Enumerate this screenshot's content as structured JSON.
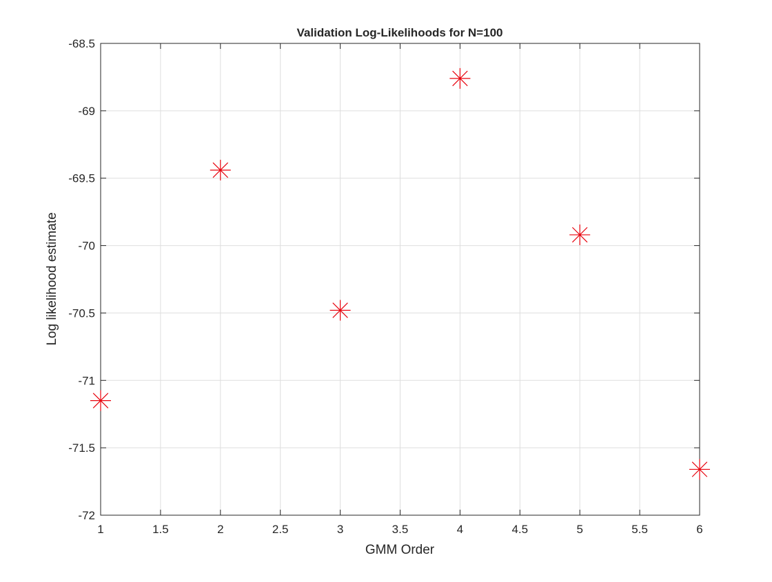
{
  "chart_data": {
    "type": "scatter",
    "title": "Validation Log-Likelihoods for N=100",
    "xlabel": "GMM Order",
    "ylabel": "Log likelihood estimate",
    "xlim": [
      1,
      6
    ],
    "ylim": [
      -72,
      -68.5
    ],
    "xticks": [
      1,
      1.5,
      2,
      2.5,
      3,
      3.5,
      4,
      4.5,
      5,
      5.5,
      6
    ],
    "xtick_labels": [
      "1",
      "1.5",
      "2",
      "2.5",
      "3",
      "3.5",
      "4",
      "4.5",
      "5",
      "5.5",
      "6"
    ],
    "yticks": [
      -72,
      -71.5,
      -71,
      -70.5,
      -70,
      -69.5,
      -69,
      -68.5
    ],
    "ytick_labels": [
      "-72",
      "-71.5",
      "-71",
      "-70.5",
      "-70",
      "-69.5",
      "-69",
      "-68.5"
    ],
    "grid": true,
    "marker": "asterisk",
    "marker_color": "#e8000b",
    "series": [
      {
        "x": [
          1,
          2,
          3,
          4,
          5,
          6
        ],
        "y": [
          -71.15,
          -69.44,
          -70.48,
          -68.76,
          -69.92,
          -71.66
        ]
      }
    ]
  }
}
